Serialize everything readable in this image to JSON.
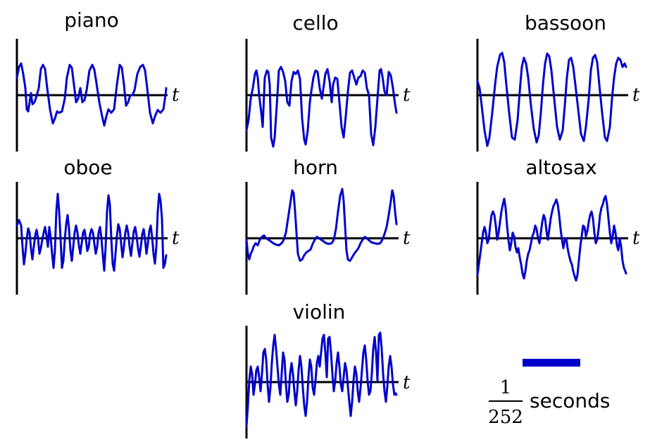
{
  "figure": {
    "axis_label": "t",
    "wave_color": "#0000CC",
    "axis_color": "#000000",
    "panels": [
      {
        "id": "piano",
        "title": "piano",
        "axis_label": "t"
      },
      {
        "id": "cello",
        "title": "cello",
        "axis_label": "t"
      },
      {
        "id": "bassoon",
        "title": "bassoon",
        "axis_label": "t"
      },
      {
        "id": "oboe",
        "title": "oboe",
        "axis_label": "t"
      },
      {
        "id": "horn",
        "title": "horn",
        "axis_label": "t"
      },
      {
        "id": "altosax",
        "title": "altosax",
        "axis_label": "t"
      },
      {
        "id": "violin",
        "title": "violin",
        "axis_label": "t"
      }
    ]
  },
  "scale_bar": {
    "numerator": "1",
    "denominator": "252",
    "units": "seconds"
  }
}
